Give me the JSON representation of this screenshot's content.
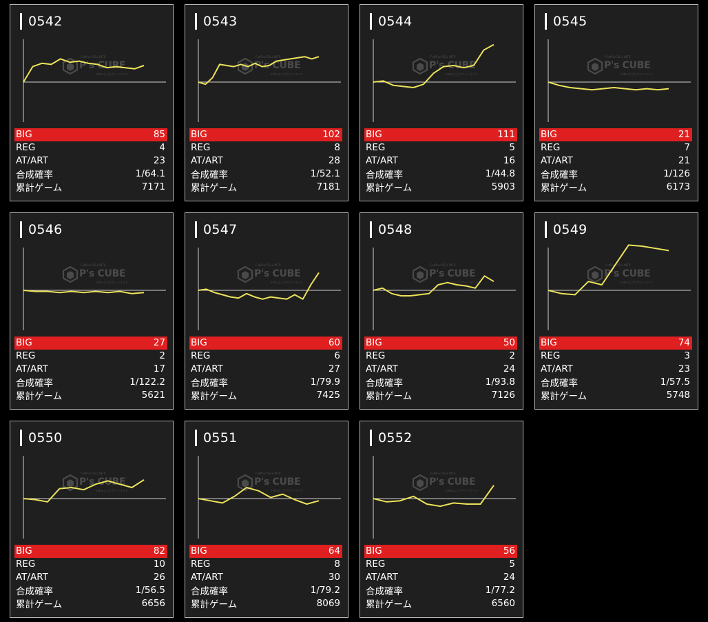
{
  "watermark": {
    "brand": "P's CUBE",
    "line1": "FukPlus 5SLL INTR",
    "line2": "indexよごだサイトマイド"
  },
  "colors": {
    "background": "#000000",
    "card": "#1f1f1f",
    "line": "#ece35a",
    "big_band": "#e02020"
  },
  "labels": {
    "big": "BIG",
    "reg": "REG",
    "atart": "AT/ART",
    "prob": "合成確率",
    "games": "累計ゲーム"
  },
  "machines": [
    {
      "id": "0542",
      "big": "85",
      "reg": "4",
      "atart": "23",
      "prob": "1/64.1",
      "games": "7171",
      "chart_data": {
        "type": "line",
        "values": [
          0,
          1.4,
          1.7,
          1.6,
          2.1,
          1.8,
          1.9,
          1.7,
          1.6,
          1.3,
          1.4,
          1.3,
          1.2,
          1.5
        ]
      }
    },
    {
      "id": "0543",
      "big": "102",
      "reg": "8",
      "atart": "28",
      "prob": "1/52.1",
      "games": "7181",
      "chart_data": {
        "type": "line",
        "values": [
          0,
          -0.2,
          0.4,
          1.6,
          1.5,
          1.4,
          1.6,
          1.4,
          1.7,
          1.4,
          1.5,
          1.9,
          2.0,
          2.1,
          2.2,
          2.3,
          2.1,
          2.3
        ]
      }
    },
    {
      "id": "0544",
      "big": "111",
      "reg": "5",
      "atart": "16",
      "prob": "1/44.8",
      "games": "5903",
      "chart_data": {
        "type": "line",
        "values": [
          0,
          0.1,
          -0.3,
          -0.4,
          -0.5,
          -0.2,
          0.8,
          1.4,
          1.5,
          1.3,
          1.5,
          2.9,
          3.4
        ]
      }
    },
    {
      "id": "0545",
      "big": "21",
      "reg": "7",
      "atart": "21",
      "prob": "1/126",
      "games": "6173",
      "chart_data": {
        "type": "line",
        "values": [
          0,
          -0.3,
          -0.5,
          -0.6,
          -0.7,
          -0.6,
          -0.5,
          -0.6,
          -0.7,
          -0.6,
          -0.7,
          -0.6
        ]
      }
    },
    {
      "id": "0546",
      "big": "27",
      "reg": "2",
      "atart": "17",
      "prob": "1/122.2",
      "games": "5621",
      "chart_data": {
        "type": "line",
        "values": [
          0,
          -0.1,
          -0.1,
          -0.2,
          -0.1,
          -0.2,
          -0.1,
          -0.2,
          -0.1,
          -0.3,
          -0.2
        ]
      }
    },
    {
      "id": "0547",
      "big": "60",
      "reg": "6",
      "atart": "27",
      "prob": "1/79.9",
      "games": "7425",
      "chart_data": {
        "type": "line",
        "values": [
          0,
          0.1,
          -0.2,
          -0.4,
          -0.6,
          -0.7,
          -0.3,
          -0.6,
          -0.8,
          -0.6,
          -0.7,
          -0.8,
          -0.4,
          -0.8,
          0.5,
          1.6
        ]
      }
    },
    {
      "id": "0548",
      "big": "50",
      "reg": "2",
      "atart": "24",
      "prob": "1/93.8",
      "games": "7126",
      "chart_data": {
        "type": "line",
        "values": [
          0,
          0.2,
          -0.3,
          -0.5,
          -0.5,
          -0.4,
          -0.3,
          0.5,
          0.7,
          0.5,
          0.4,
          0.2,
          1.3,
          0.8
        ]
      }
    },
    {
      "id": "0549",
      "big": "74",
      "reg": "3",
      "atart": "23",
      "prob": "1/57.5",
      "games": "5748",
      "chart_data": {
        "type": "line",
        "values": [
          0,
          -0.3,
          -0.4,
          0.8,
          0.5,
          2.3,
          4.1,
          4.0,
          3.8,
          3.6
        ]
      }
    },
    {
      "id": "0550",
      "big": "82",
      "reg": "10",
      "atart": "26",
      "prob": "1/56.5",
      "games": "6656",
      "chart_data": {
        "type": "line",
        "values": [
          0,
          -0.1,
          -0.3,
          0.9,
          1.0,
          0.8,
          1.3,
          1.6,
          1.3,
          1.0,
          1.7
        ]
      }
    },
    {
      "id": "0551",
      "big": "64",
      "reg": "8",
      "atart": "30",
      "prob": "1/79.2",
      "games": "8069",
      "chart_data": {
        "type": "line",
        "values": [
          0,
          -0.2,
          -0.4,
          0.2,
          1.0,
          0.7,
          0.1,
          0.4,
          -0.1,
          -0.5,
          -0.2
        ]
      }
    },
    {
      "id": "0552",
      "big": "56",
      "reg": "5",
      "atart": "24",
      "prob": "1/77.2",
      "games": "6560",
      "chart_data": {
        "type": "line",
        "values": [
          0,
          -0.3,
          -0.2,
          0.2,
          -0.5,
          -0.7,
          -0.4,
          -0.5,
          -0.5,
          1.2
        ]
      }
    }
  ]
}
